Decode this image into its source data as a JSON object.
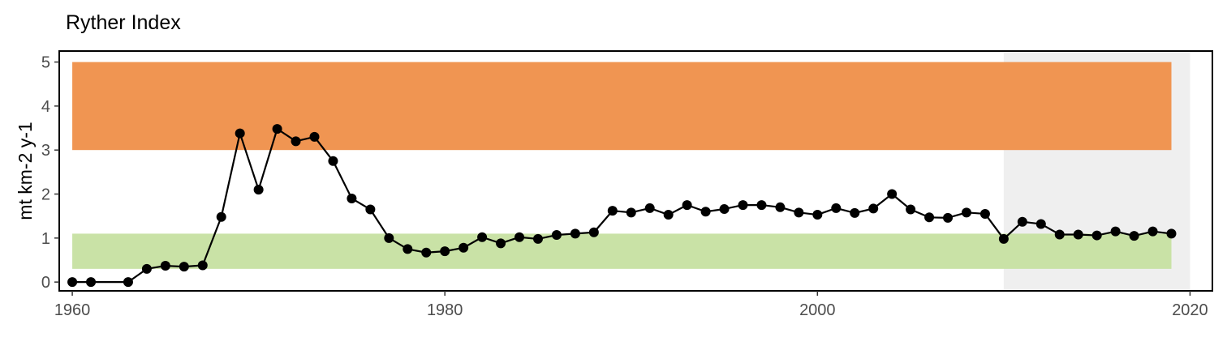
{
  "chart_data": {
    "type": "line",
    "title": "Ryther Index",
    "xlabel": "",
    "ylabel": "mt km-2 y-1",
    "xlim": [
      1959.3,
      2021.2
    ],
    "ylim": [
      -0.2,
      5.25
    ],
    "x_ticks": [
      1960,
      1980,
      2000,
      2020
    ],
    "y_ticks": [
      0,
      1,
      2,
      3,
      4,
      5
    ],
    "grid": false,
    "legend": "none",
    "bands": [
      {
        "name": "upper",
        "ymin": 3.0,
        "ymax": 5.0,
        "xmin": 1960,
        "xmax": 2019,
        "color": "#f09552"
      },
      {
        "name": "lower",
        "ymin": 0.3,
        "ymax": 1.1,
        "xmin": 1960,
        "xmax": 2019,
        "color": "#c9e2a6"
      }
    ],
    "shaded_region": {
      "xmin": 2010,
      "xmax": 2020,
      "color": "#bfbfbf",
      "opacity": 0.25
    },
    "series": [
      {
        "color": "#000000",
        "x": [
          1960,
          1961,
          1963,
          1964,
          1965,
          1966,
          1967,
          1968,
          1969,
          1970,
          1971,
          1972,
          1973,
          1974,
          1975,
          1976,
          1977,
          1978,
          1979,
          1980,
          1981,
          1982,
          1983,
          1984,
          1985,
          1986,
          1987,
          1988,
          1989,
          1990,
          1991,
          1992,
          1993,
          1994,
          1995,
          1996,
          1997,
          1998,
          1999,
          2000,
          2001,
          2002,
          2003,
          2004,
          2005,
          2006,
          2007,
          2008,
          2009,
          2010,
          2011,
          2012,
          2013,
          2014,
          2015,
          2016,
          2017,
          2018,
          2019
        ],
        "y": [
          0.0,
          0.0,
          0.0,
          0.3,
          0.37,
          0.35,
          0.38,
          1.48,
          3.38,
          2.1,
          3.48,
          3.2,
          3.3,
          2.75,
          1.9,
          1.65,
          1.0,
          0.75,
          0.67,
          0.7,
          0.78,
          1.02,
          0.88,
          1.02,
          0.98,
          1.07,
          1.1,
          1.13,
          1.62,
          1.58,
          1.68,
          1.53,
          1.75,
          1.6,
          1.66,
          1.75,
          1.75,
          1.7,
          1.58,
          1.53,
          1.68,
          1.57,
          1.67,
          2.0,
          1.65,
          1.47,
          1.46,
          1.58,
          1.55,
          0.98,
          1.37,
          1.32,
          1.08,
          1.08,
          1.06,
          1.15,
          1.05,
          1.15,
          1.1
        ]
      }
    ]
  }
}
